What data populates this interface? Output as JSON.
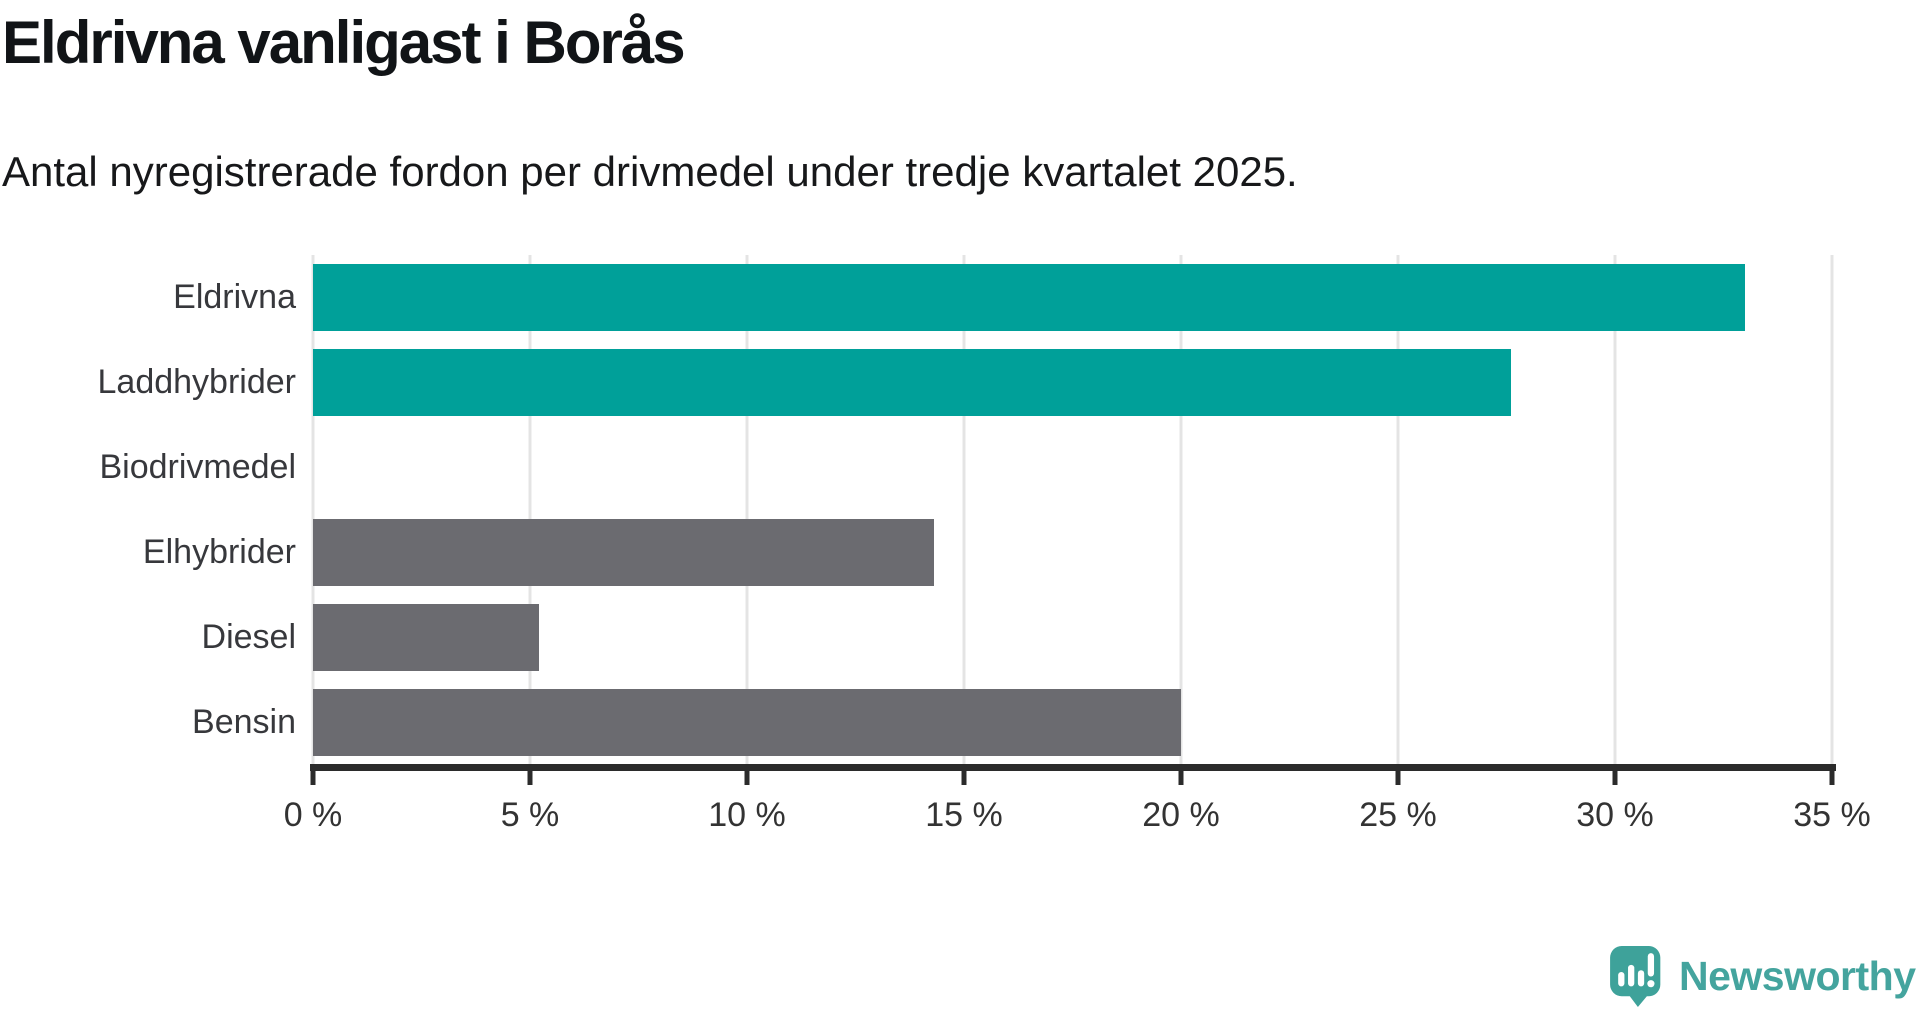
{
  "header": {
    "title": "Eldrivna vanligast i Borås",
    "subtitle": "Antal nyregistrerade fordon per drivmedel under tredje kvartalet 2025."
  },
  "chart_data": {
    "type": "bar",
    "orientation": "horizontal",
    "title": "Eldrivna vanligast i Borås",
    "subtitle": "Antal nyregistrerade fordon per drivmedel under tredje kvartalet 2025.",
    "categories": [
      "Eldrivna",
      "Laddhybrider",
      "Biodrivmedel",
      "Elhybrider",
      "Diesel",
      "Bensin"
    ],
    "values": [
      33.0,
      27.6,
      0.0,
      14.3,
      5.2,
      20.0
    ],
    "unit": "%",
    "xlim": [
      0,
      35
    ],
    "x_ticks": [
      {
        "value": 0,
        "label": "0 %"
      },
      {
        "value": 5,
        "label": "5 %"
      },
      {
        "value": 10,
        "label": "10 %"
      },
      {
        "value": 15,
        "label": "15 %"
      },
      {
        "value": 20,
        "label": "20 %"
      },
      {
        "value": 25,
        "label": "25 %"
      },
      {
        "value": 30,
        "label": "30 %"
      },
      {
        "value": 35,
        "label": "35 %"
      }
    ],
    "bar_colors": [
      "#00A099",
      "#00A099",
      "#6B6B70",
      "#6B6B70",
      "#6B6B70",
      "#6B6B70"
    ],
    "highlight_color": "#00A099",
    "default_color": "#6B6B70",
    "grid": true,
    "gridline_color": "#E4E4E4",
    "axis_color": "#2B2B2B",
    "legend": "none"
  },
  "footer": {
    "brand_name": "Newsworthy",
    "brand_color": "#44A49E",
    "logo_mark_color": "#3EA29A"
  }
}
